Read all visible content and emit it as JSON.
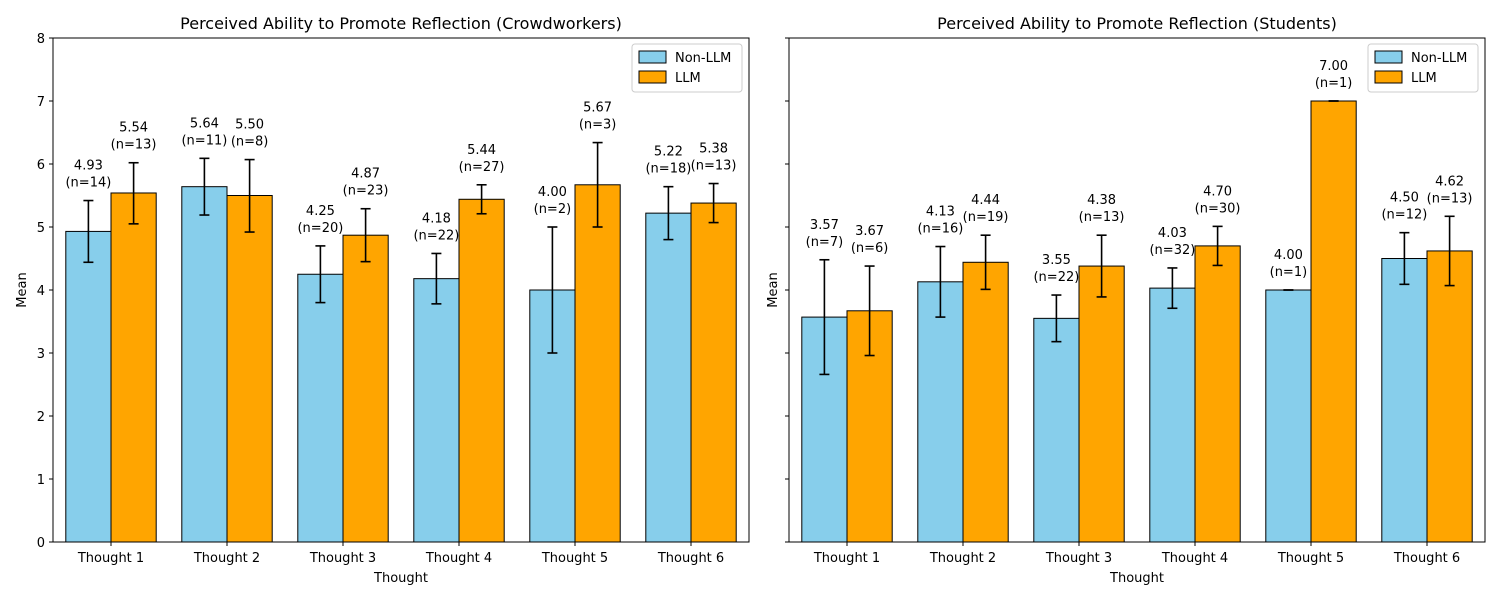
{
  "chart_data": [
    {
      "type": "bar",
      "title": "Perceived Ability to Promote Reflection (Crowdworkers)",
      "xlabel": "Thought",
      "ylabel": "Mean",
      "ylim": [
        0,
        8
      ],
      "yticks": [
        0,
        1,
        2,
        3,
        4,
        5,
        6,
        7,
        8
      ],
      "show_ytick_labels": true,
      "legend_position": "top-right",
      "categories": [
        "Thought 1",
        "Thought 2",
        "Thought 3",
        "Thought 4",
        "Thought 5",
        "Thought 6"
      ],
      "series": [
        {
          "name": "Non-LLM",
          "color": "#87ceeb",
          "values": [
            4.93,
            5.64,
            4.25,
            4.18,
            4.0,
            5.22
          ],
          "labels": [
            "4.93",
            "5.64",
            "4.25",
            "4.18",
            "4.00",
            "5.22"
          ],
          "n_labels": [
            "(n=14)",
            "(n=11)",
            "(n=20)",
            "(n=22)",
            "(n=2)",
            "(n=18)"
          ],
          "err_low": [
            4.44,
            5.19,
            3.8,
            3.78,
            3.0,
            4.8
          ],
          "err_high": [
            5.42,
            6.09,
            4.7,
            4.58,
            5.0,
            5.64
          ]
        },
        {
          "name": "LLM",
          "color": "#ffa500",
          "values": [
            5.54,
            5.5,
            4.87,
            5.44,
            5.67,
            5.38
          ],
          "labels": [
            "5.54",
            "5.50",
            "4.87",
            "5.44",
            "5.67",
            "5.38"
          ],
          "n_labels": [
            "(n=13)",
            "(n=8)",
            "(n=23)",
            "(n=27)",
            "(n=3)",
            "(n=13)"
          ],
          "err_low": [
            5.05,
            4.92,
            4.45,
            5.21,
            5.0,
            5.07
          ],
          "err_high": [
            6.02,
            6.07,
            5.29,
            5.67,
            6.34,
            5.69
          ]
        }
      ]
    },
    {
      "type": "bar",
      "title": "Perceived Ability to Promote Reflection (Students)",
      "xlabel": "Thought",
      "ylabel": "Mean",
      "ylim": [
        0,
        8
      ],
      "yticks": [
        0,
        1,
        2,
        3,
        4,
        5,
        6,
        7,
        8
      ],
      "show_ytick_labels": false,
      "legend_position": "top-right",
      "categories": [
        "Thought 1",
        "Thought 2",
        "Thought 3",
        "Thought 4",
        "Thought 5",
        "Thought 6"
      ],
      "series": [
        {
          "name": "Non-LLM",
          "color": "#87ceeb",
          "values": [
            3.57,
            4.13,
            3.55,
            4.03,
            4.0,
            4.5
          ],
          "labels": [
            "3.57",
            "4.13",
            "3.55",
            "4.03",
            "4.00",
            "4.50"
          ],
          "n_labels": [
            "(n=7)",
            "(n=16)",
            "(n=22)",
            "(n=32)",
            "(n=1)",
            "(n=12)"
          ],
          "err_low": [
            2.66,
            3.57,
            3.18,
            3.71,
            4.0,
            4.09
          ],
          "err_high": [
            4.48,
            4.69,
            3.92,
            4.35,
            4.0,
            4.91
          ]
        },
        {
          "name": "LLM",
          "color": "#ffa500",
          "values": [
            3.67,
            4.44,
            4.38,
            4.7,
            7.0,
            4.62
          ],
          "labels": [
            "3.67",
            "4.44",
            "4.38",
            "4.70",
            "7.00",
            "4.62"
          ],
          "n_labels": [
            "(n=6)",
            "(n=19)",
            "(n=13)",
            "(n=30)",
            "(n=1)",
            "(n=13)"
          ],
          "err_low": [
            2.96,
            4.01,
            3.89,
            4.39,
            7.0,
            4.07
          ],
          "err_high": [
            4.38,
            4.87,
            4.87,
            5.01,
            7.0,
            5.17
          ]
        }
      ]
    }
  ]
}
